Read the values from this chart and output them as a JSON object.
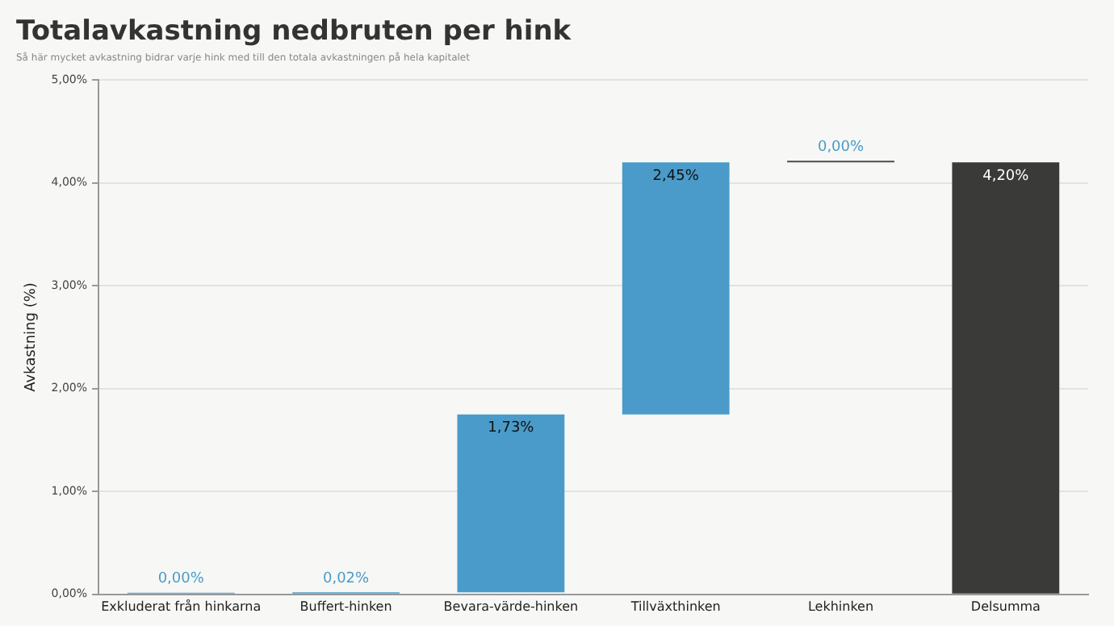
{
  "chart_data": {
    "type": "bar",
    "title": "Totalavkastning nedbruten per hink",
    "subtitle": "Så här mycket avkastning bidrar varje hink med till den totala avkastningen på hela kapitalet",
    "ylabel": "Avkastning (%)",
    "categories": [
      "Exkluderat från hinkarna",
      "Buffert-hinken",
      "Bevara-värde-hinken",
      "Tillväxthinken",
      "Lekhinken",
      "Delsumma"
    ],
    "values": [
      0,
      0.02,
      1.73,
      2.45,
      0,
      4.2
    ],
    "base": [
      0,
      0,
      0.02,
      1.75,
      4.2,
      0
    ],
    "colors": [
      "#4a9bc9",
      "#4a9bc9",
      "#4a9bc9",
      "#4a9bc9",
      "#4d4d4b",
      "#3a3a38"
    ],
    "value_labels": [
      "0,00%",
      "0,02%",
      "1,73%",
      "2,45%",
      "0,00%",
      "4,20%"
    ],
    "ylim": [
      0,
      5
    ],
    "yticks": [
      {
        "value": 0,
        "label": "0,00%"
      },
      {
        "value": 1,
        "label": "1,00%"
      },
      {
        "value": 2,
        "label": "2,00%"
      },
      {
        "value": 3,
        "label": "3,00%"
      },
      {
        "value": 4,
        "label": "4,00%"
      },
      {
        "value": 5,
        "label": "5,00%"
      }
    ],
    "grid": "y",
    "legend": false
  }
}
